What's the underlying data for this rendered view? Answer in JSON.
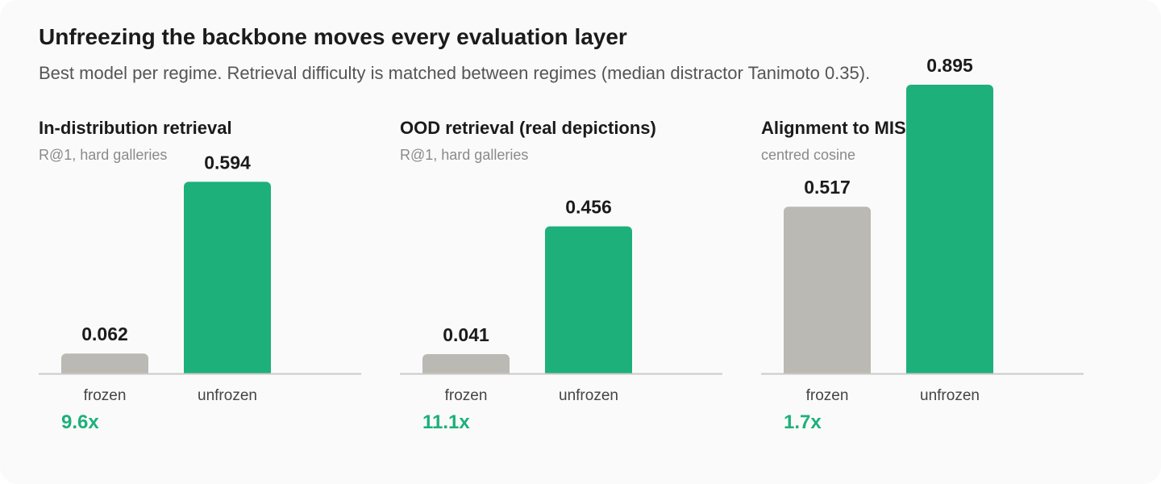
{
  "header": {
    "title": "Unfreezing the backbone moves every evaluation layer",
    "subtitle": "Best model per regime. Retrieval difficulty is matched between regimes (median distractor Tanimoto 0.35)."
  },
  "colors": {
    "frozen": "#bab9b3",
    "unfrozen": "#1db07b",
    "ratio": "#1db07b",
    "baseline": "#c9c9c9"
  },
  "chart_data": [
    {
      "type": "bar",
      "title": "In-distribution retrieval",
      "subtitle": "R@1, hard galleries",
      "categories": [
        "frozen",
        "unfrozen"
      ],
      "values": [
        0.062,
        0.594
      ],
      "value_labels": [
        "0.062",
        "0.594"
      ],
      "ratio_label": "9.6x"
    },
    {
      "type": "bar",
      "title": "OOD retrieval (real depictions)",
      "subtitle": "R@1, hard galleries",
      "categories": [
        "frozen",
        "unfrozen"
      ],
      "values": [
        0.041,
        0.456
      ],
      "value_labels": [
        "0.041",
        "0.456"
      ],
      "ratio_label": "11.1x"
    },
    {
      "type": "bar",
      "title": "Alignment to MIST",
      "subtitle": "centred cosine",
      "categories": [
        "frozen",
        "unfrozen"
      ],
      "values": [
        0.517,
        0.895
      ],
      "value_labels": [
        "0.517",
        "0.895"
      ],
      "ratio_label": "1.7x"
    }
  ]
}
